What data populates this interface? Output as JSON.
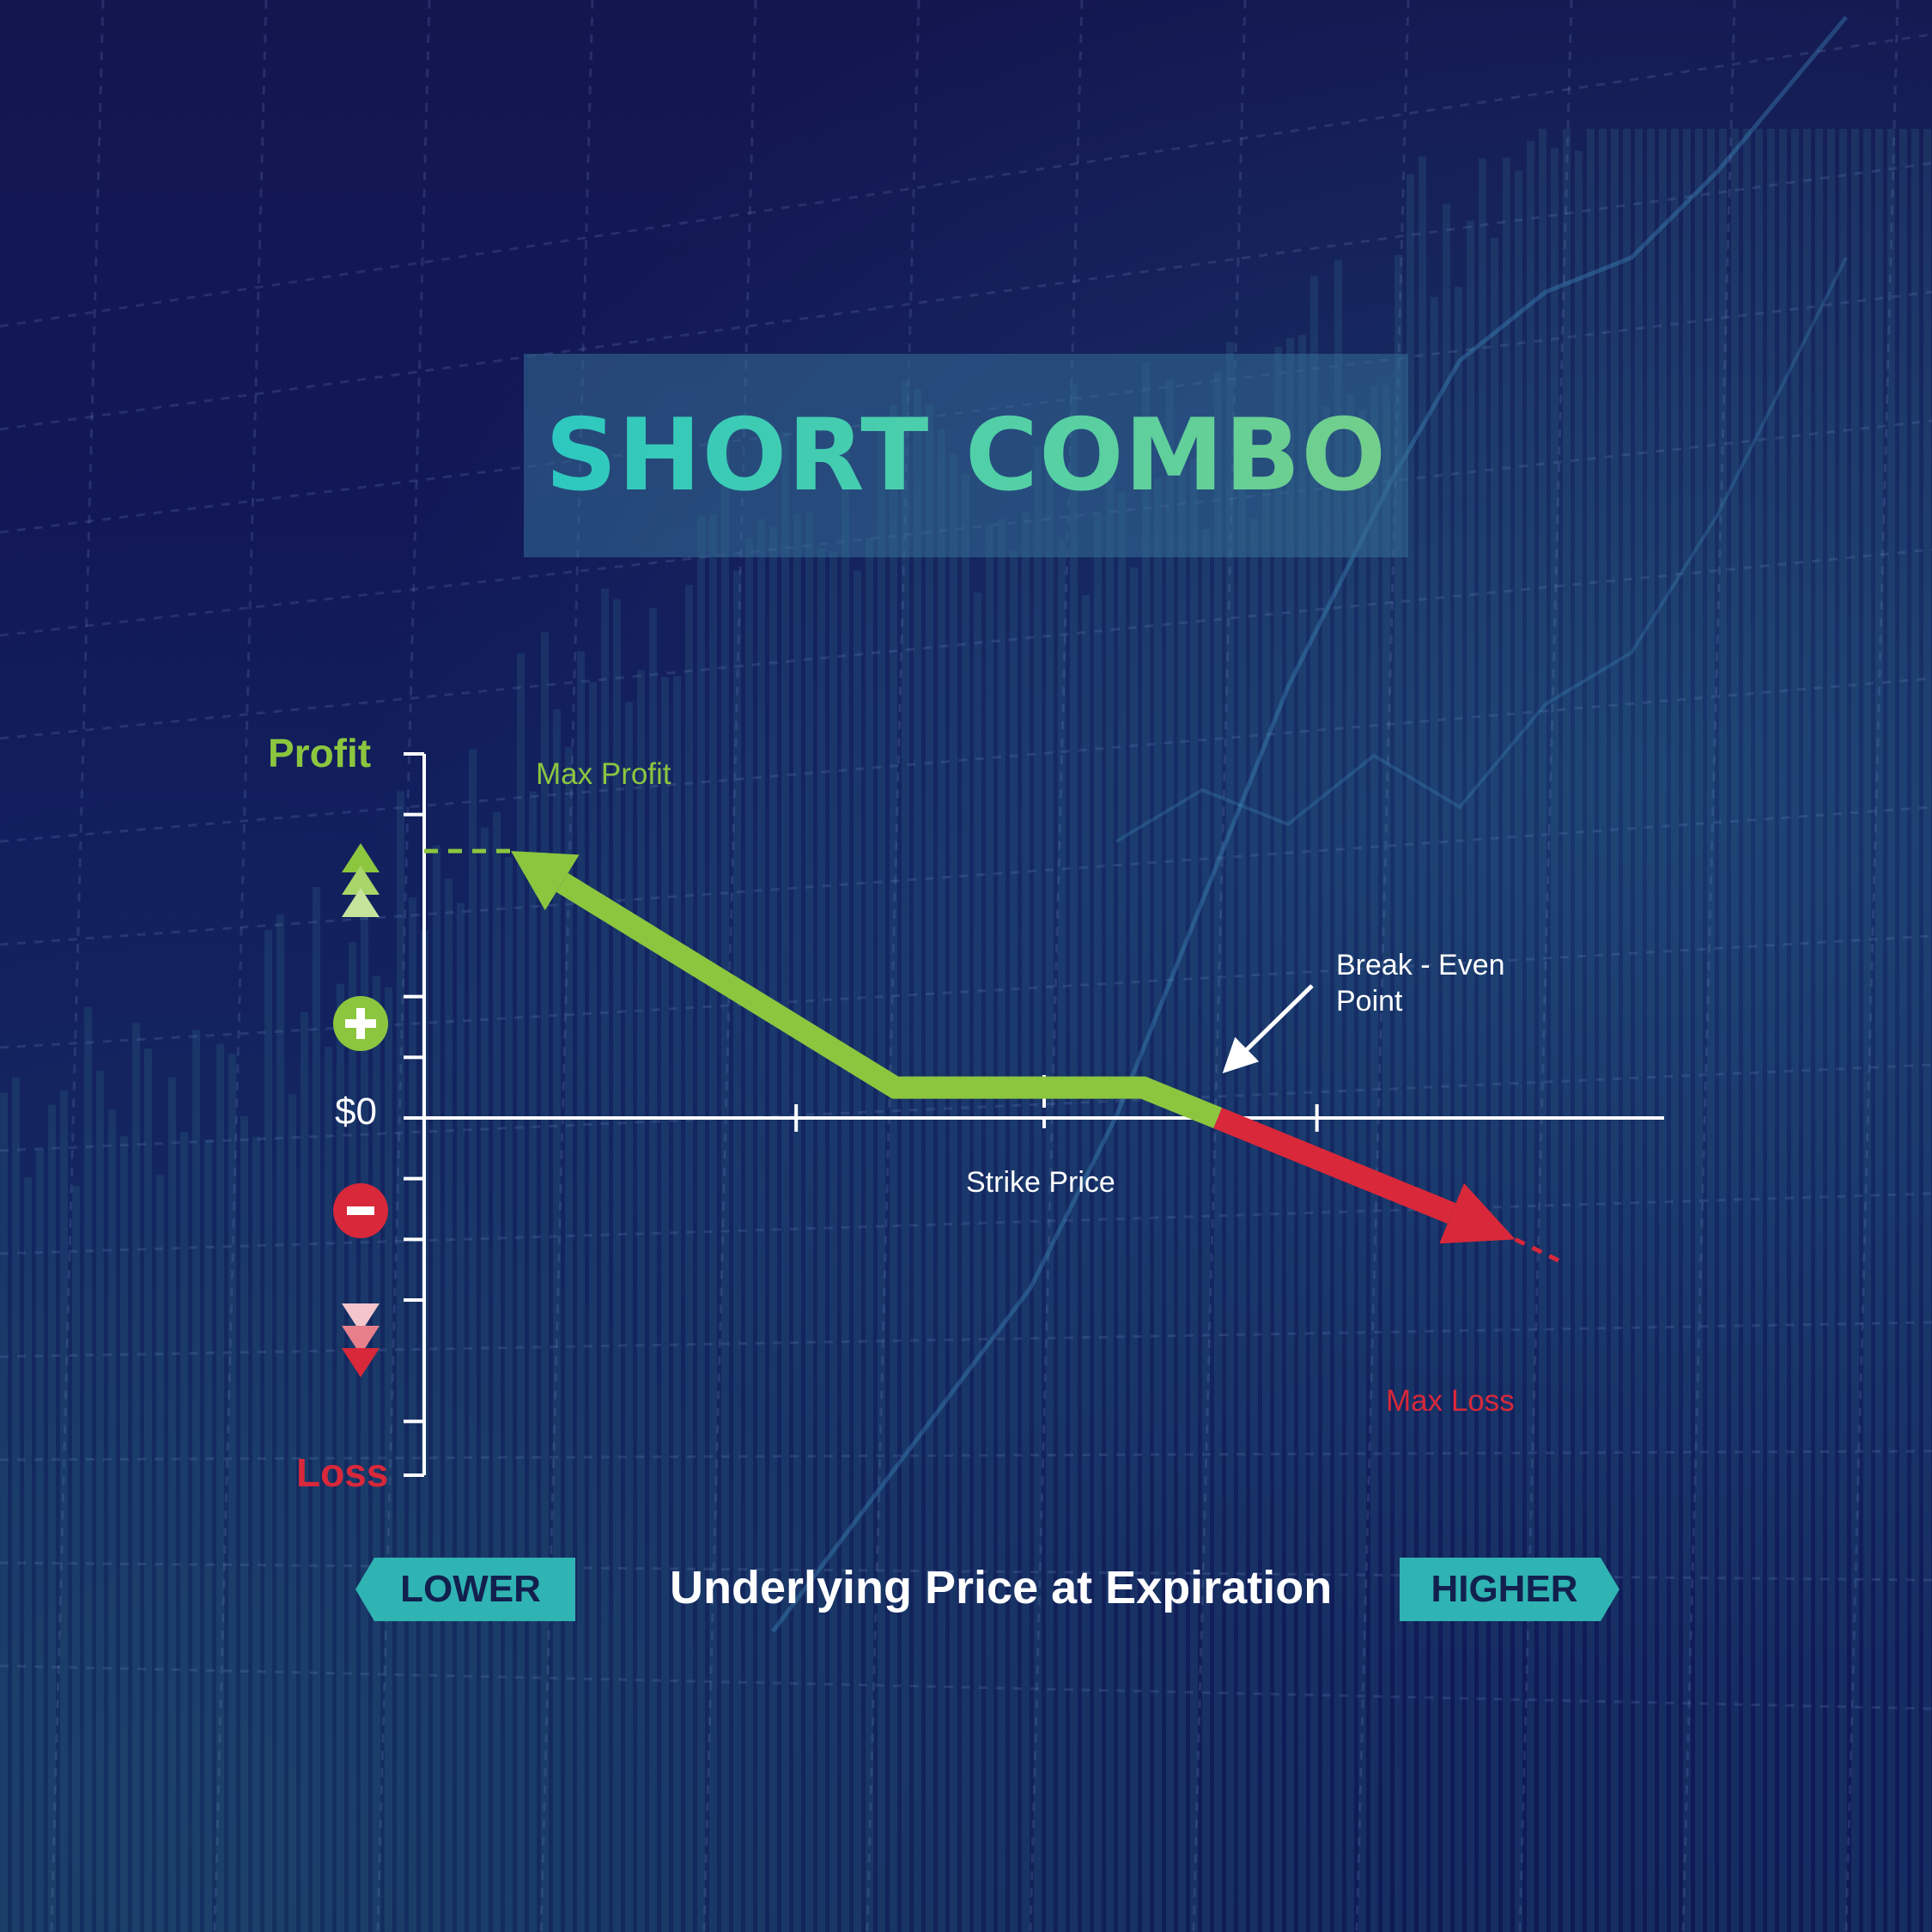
{
  "title": "SHORT COMBO",
  "colors": {
    "profit": "#8cc63f",
    "loss": "#d8283a",
    "axis": "#ffffff",
    "tag": "#2fb3b3",
    "background": "#111a5c"
  },
  "icons": {
    "profit_arrows": "triangles-up-icon",
    "plus": "plus-circle-icon",
    "minus": "minus-circle-icon",
    "loss_arrows": "triangles-down-icon"
  },
  "chart_data": {
    "type": "line",
    "title": "SHORT COMBO",
    "xlabel": "Underlying Price at Expiration",
    "ylabel_top": "Profit",
    "ylabel_bottom": "Loss",
    "zero_label": "$0",
    "x_direction_labels": {
      "left": "LOWER",
      "right": "HIGHER"
    },
    "xlim": [
      0,
      10
    ],
    "ylim": [
      -6,
      6
    ],
    "x_ticks": [
      3,
      5,
      7.2
    ],
    "strike_x": 5,
    "y_ticks": [
      5,
      2,
      1,
      -1,
      -2,
      -3,
      -5
    ],
    "payoff": [
      {
        "x": 0.7,
        "y": 4.4
      },
      {
        "x": 3.8,
        "y": 0.5
      },
      {
        "x": 5.8,
        "y": 0.5
      },
      {
        "x": 6.4,
        "y": 0
      },
      {
        "x": 8.8,
        "y": -2.0
      }
    ],
    "extensions": {
      "profit": [
        {
          "x": 0,
          "y": 4.4
        },
        {
          "x": 0.7,
          "y": 4.4
        }
      ],
      "loss": [
        {
          "x": 8.8,
          "y": -2.0
        },
        {
          "x": 9.2,
          "y": -2.4
        }
      ]
    },
    "annotations": {
      "max_profit": "Max Profit",
      "max_loss": "Max Loss",
      "strike_price": "Strike Price",
      "break_even": [
        "Break - Even",
        "Point"
      ],
      "break_even_x": 6.4
    }
  }
}
